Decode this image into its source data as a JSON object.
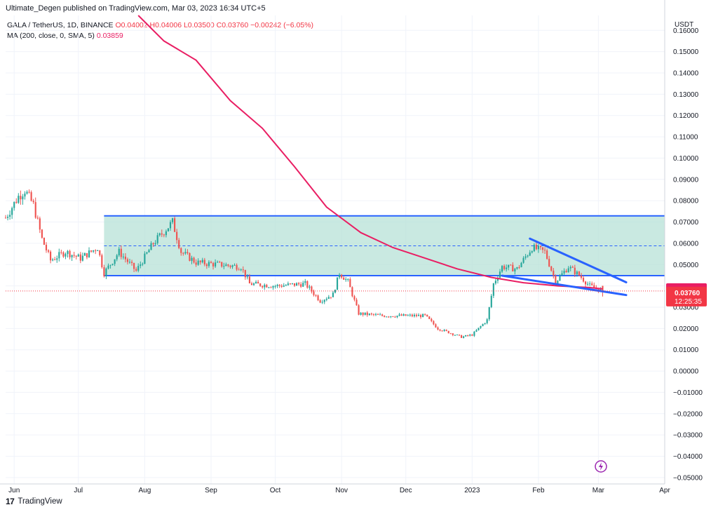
{
  "header": {
    "publisher": "Ultimate_Degen published on TradingView.com, Mar 03, 2023 16:34 UTC+5"
  },
  "legend": {
    "symbol": "GALA / TetherUS, 1D, BINANCE",
    "ohlc": "O0.04002  H0.04006  L0.03500  C0.03760  −0.00242 (−6.05%)",
    "ma_label": "MA (200, close, 0, SMA, 5)",
    "ma_value": "0.03859"
  },
  "footer": {
    "brand": "TradingView"
  },
  "colors": {
    "up": "#26a69a",
    "down": "#ef5350",
    "ma": "#e91e63",
    "lines": "#2962ff",
    "zone": "#b2dfd4",
    "tag_ma": "#e91e63",
    "tag_price": "#f23645"
  },
  "chart_data": {
    "type": "candlestick",
    "title": "GALA / TetherUS, 1D, BINANCE",
    "y_axis_label": "USDT",
    "y_ticks": [
      "0.16000",
      "0.15000",
      "0.14000",
      "0.13000",
      "0.12000",
      "0.11000",
      "0.10000",
      "0.09000",
      "0.08000",
      "0.07000",
      "0.06000",
      "0.05000",
      "0.04000",
      "0.03000",
      "0.02000",
      "0.01000",
      "0.00000",
      "−0.01000",
      "−0.02000",
      "−0.03000",
      "−0.04000",
      "−0.05000"
    ],
    "y_tick_values": [
      0.16,
      0.15,
      0.14,
      0.13,
      0.12,
      0.11,
      0.1,
      0.09,
      0.08,
      0.07,
      0.06,
      0.05,
      0.04,
      0.03,
      0.02,
      0.01,
      0.0,
      -0.01,
      -0.02,
      -0.03,
      -0.04,
      -0.05
    ],
    "ylim": [
      -0.053,
      0.167
    ],
    "x_ticks": [
      "Jun",
      "Jul",
      "Aug",
      "Sep",
      "Oct",
      "Nov",
      "Dec",
      "2023",
      "Feb",
      "Mar",
      "Apr"
    ],
    "x_tick_dates": [
      "2022-06-01",
      "2022-07-01",
      "2022-08-01",
      "2022-09-01",
      "2022-10-01",
      "2022-11-01",
      "2022-12-01",
      "2023-01-01",
      "2023-02-01",
      "2023-03-01",
      "2023-04-01"
    ],
    "xlim": [
      "2022-05-28",
      "2023-04-01"
    ],
    "price_anchors": [
      [
        "2022-05-28",
        0.072
      ],
      [
        "2022-06-03",
        0.082
      ],
      [
        "2022-06-06",
        0.085
      ],
      [
        "2022-06-10",
        0.078
      ],
      [
        "2022-06-14",
        0.062
      ],
      [
        "2022-06-18",
        0.052
      ],
      [
        "2022-06-25",
        0.056
      ],
      [
        "2022-07-02",
        0.053
      ],
      [
        "2022-07-10",
        0.058
      ],
      [
        "2022-07-13",
        0.046
      ],
      [
        "2022-07-20",
        0.056
      ],
      [
        "2022-07-28",
        0.047
      ],
      [
        "2022-08-05",
        0.06
      ],
      [
        "2022-08-14",
        0.07
      ],
      [
        "2022-08-18",
        0.056
      ],
      [
        "2022-08-25",
        0.051
      ],
      [
        "2022-09-05",
        0.05
      ],
      [
        "2022-09-15",
        0.049
      ],
      [
        "2022-09-19",
        0.041
      ],
      [
        "2022-10-01",
        0.04
      ],
      [
        "2022-10-15",
        0.041
      ],
      [
        "2022-10-22",
        0.033
      ],
      [
        "2022-10-28",
        0.036
      ],
      [
        "2022-10-31",
        0.046
      ],
      [
        "2022-11-04",
        0.042
      ],
      [
        "2022-11-09",
        0.027
      ],
      [
        "2022-11-20",
        0.026
      ],
      [
        "2022-12-01",
        0.026
      ],
      [
        "2022-12-10",
        0.026
      ],
      [
        "2022-12-16",
        0.02
      ],
      [
        "2022-12-27",
        0.016
      ],
      [
        "2023-01-01",
        0.017
      ],
      [
        "2023-01-08",
        0.024
      ],
      [
        "2023-01-11",
        0.041
      ],
      [
        "2023-01-15",
        0.049
      ],
      [
        "2023-01-22",
        0.048
      ],
      [
        "2023-01-29",
        0.058
      ],
      [
        "2023-02-04",
        0.056
      ],
      [
        "2023-02-09",
        0.042
      ],
      [
        "2023-02-15",
        0.049
      ],
      [
        "2023-02-20",
        0.045
      ],
      [
        "2023-02-25",
        0.04
      ],
      [
        "2023-03-03",
        0.0376
      ]
    ],
    "ma_anchors": [
      [
        "2022-07-29",
        0.167
      ],
      [
        "2022-08-10",
        0.155
      ],
      [
        "2022-08-25",
        0.146
      ],
      [
        "2022-09-10",
        0.127
      ],
      [
        "2022-09-25",
        0.114
      ],
      [
        "2022-10-10",
        0.096
      ],
      [
        "2022-10-25",
        0.077
      ],
      [
        "2022-11-10",
        0.065
      ],
      [
        "2022-11-25",
        0.058
      ],
      [
        "2022-12-10",
        0.053
      ],
      [
        "2022-12-25",
        0.048
      ],
      [
        "2023-01-10",
        0.044
      ],
      [
        "2023-01-25",
        0.0415
      ],
      [
        "2023-02-10",
        0.04
      ],
      [
        "2023-02-25",
        0.0392
      ],
      [
        "2023-03-03",
        0.03859
      ]
    ],
    "range_box": {
      "start": "2022-07-13",
      "end": "2023-04-01",
      "top": 0.0729,
      "bottom": 0.0448,
      "mid": 0.0588
    },
    "trendlines": [
      {
        "name": "upper",
        "start": [
          "2023-01-28",
          0.0622
        ],
        "end": [
          "2023-03-14",
          0.0417
        ]
      },
      {
        "name": "lower",
        "start": [
          "2023-01-15",
          0.0448
        ],
        "end": [
          "2023-03-14",
          0.0357
        ]
      }
    ],
    "price_line": 0.0376,
    "ma_tag": {
      "label": "0.03859",
      "value": 0.03859
    },
    "price_tag": {
      "label": "0.03760",
      "countdown": "12:25:35",
      "value": 0.0376
    }
  }
}
